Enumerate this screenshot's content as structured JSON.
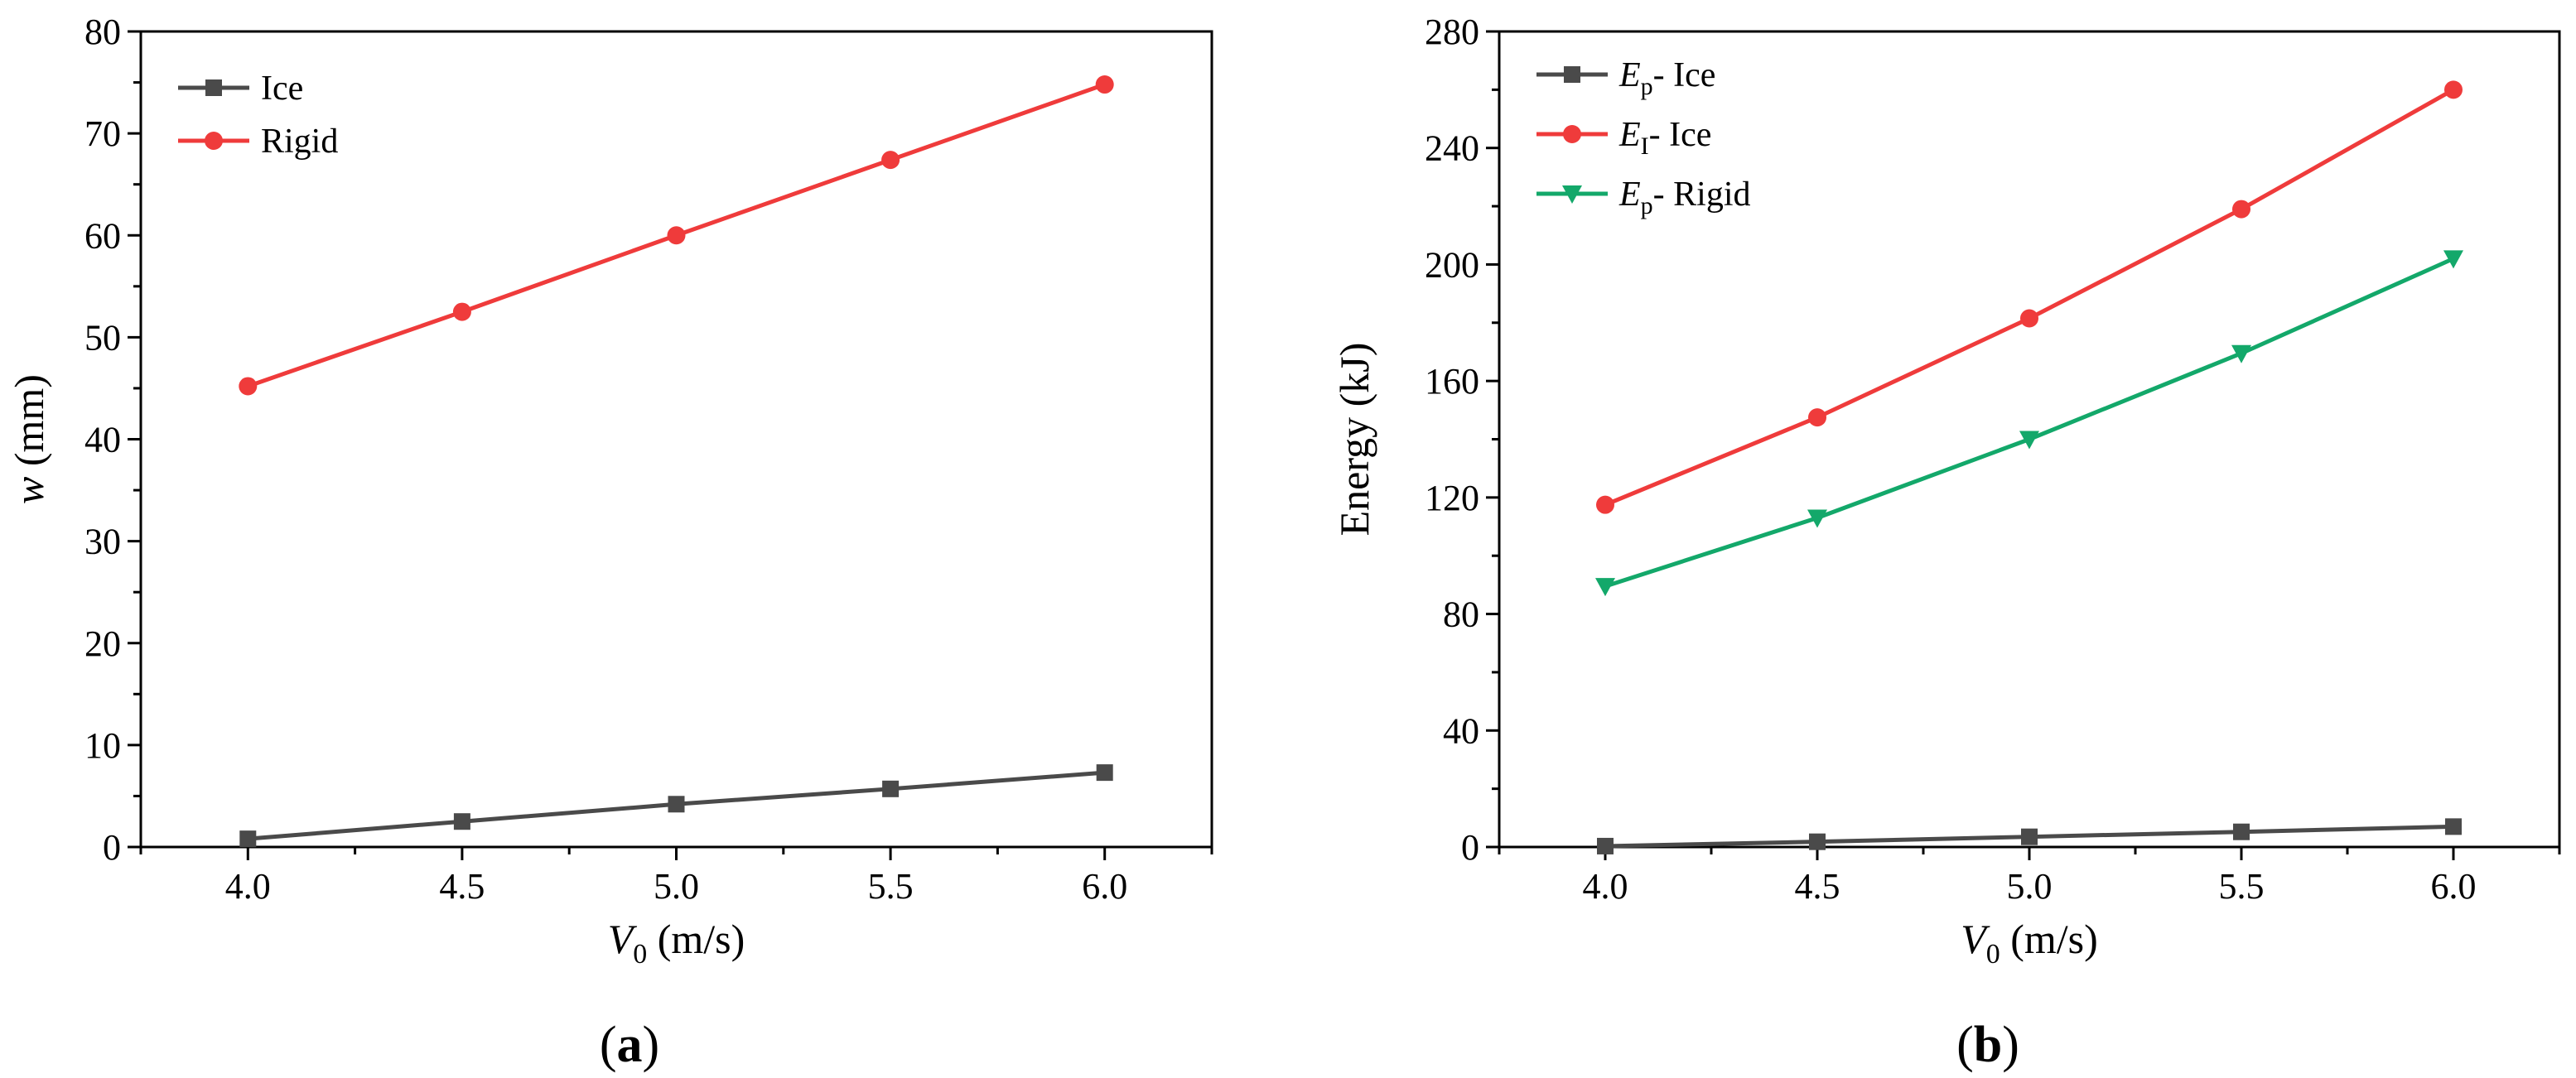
{
  "chart_data": [
    {
      "type": "line",
      "panel_label": "(a)",
      "panel_letter": "a",
      "ylabel_var": "w",
      "ylabel_unit": " (mm)",
      "xlabel_var": "V",
      "xlabel_sub": "0",
      "xlabel_unit": " (m/s)",
      "xlim": [
        3.75,
        6.25
      ],
      "ylim": [
        0,
        80
      ],
      "xticks": [
        4.0,
        4.5,
        5.0,
        5.5,
        6.0
      ],
      "xtick_labels": [
        "4.0",
        "4.5",
        "5.0",
        "5.5",
        "6.0"
      ],
      "yticks": [
        0,
        10,
        20,
        30,
        40,
        50,
        60,
        70,
        80
      ],
      "ytick_labels": [
        "0",
        "10",
        "20",
        "30",
        "40",
        "50",
        "60",
        "70",
        "80"
      ],
      "legend_position": "top-left",
      "x": [
        4.0,
        4.5,
        5.0,
        5.5,
        6.0
      ],
      "series": [
        {
          "name": "Ice",
          "label_main": "Ice",
          "label_sub": "",
          "label_rest": "",
          "color": "#4a4a4a",
          "marker": "square",
          "values": [
            0.8,
            2.5,
            4.2,
            5.7,
            7.3
          ]
        },
        {
          "name": "Rigid",
          "label_main": "Rigid",
          "label_sub": "",
          "label_rest": "",
          "color": "#ef3b3b",
          "marker": "circle",
          "values": [
            45.2,
            52.5,
            60.0,
            67.4,
            74.8
          ]
        }
      ]
    },
    {
      "type": "line",
      "panel_label": "(b)",
      "panel_letter": "b",
      "ylabel_var": "",
      "ylabel_unit": "Energy (kJ)",
      "xlabel_var": "V",
      "xlabel_sub": "0",
      "xlabel_unit": " (m/s)",
      "xlim": [
        3.75,
        6.25
      ],
      "ylim": [
        0,
        280
      ],
      "xticks": [
        4.0,
        4.5,
        5.0,
        5.5,
        6.0
      ],
      "xtick_labels": [
        "4.0",
        "4.5",
        "5.0",
        "5.5",
        "6.0"
      ],
      "yticks": [
        0,
        40,
        80,
        120,
        160,
        200,
        240,
        280
      ],
      "ytick_labels": [
        "0",
        "40",
        "80",
        "120",
        "160",
        "200",
        "240",
        "280"
      ],
      "legend_position": "top-left",
      "x": [
        4.0,
        4.5,
        5.0,
        5.5,
        6.0
      ],
      "series": [
        {
          "name": "Ep- Ice",
          "label_main": "E",
          "label_sub": "p",
          "label_rest": "- Ice",
          "color": "#4a4a4a",
          "marker": "square",
          "values": [
            0.3,
            1.8,
            3.5,
            5.2,
            7.0
          ]
        },
        {
          "name": "EI- Ice",
          "label_main": "E",
          "label_sub": "I",
          "label_rest": "- Ice",
          "color": "#ef3b3b",
          "marker": "circle",
          "values": [
            117.5,
            147.5,
            181.5,
            219.0,
            260.0
          ]
        },
        {
          "name": "Ep- Rigid",
          "label_main": "E",
          "label_sub": "p",
          "label_rest": "- Rigid",
          "color": "#13a86a",
          "marker": "triangle-down",
          "values": [
            89.5,
            113.0,
            140.0,
            169.5,
            202.0
          ]
        }
      ]
    }
  ]
}
